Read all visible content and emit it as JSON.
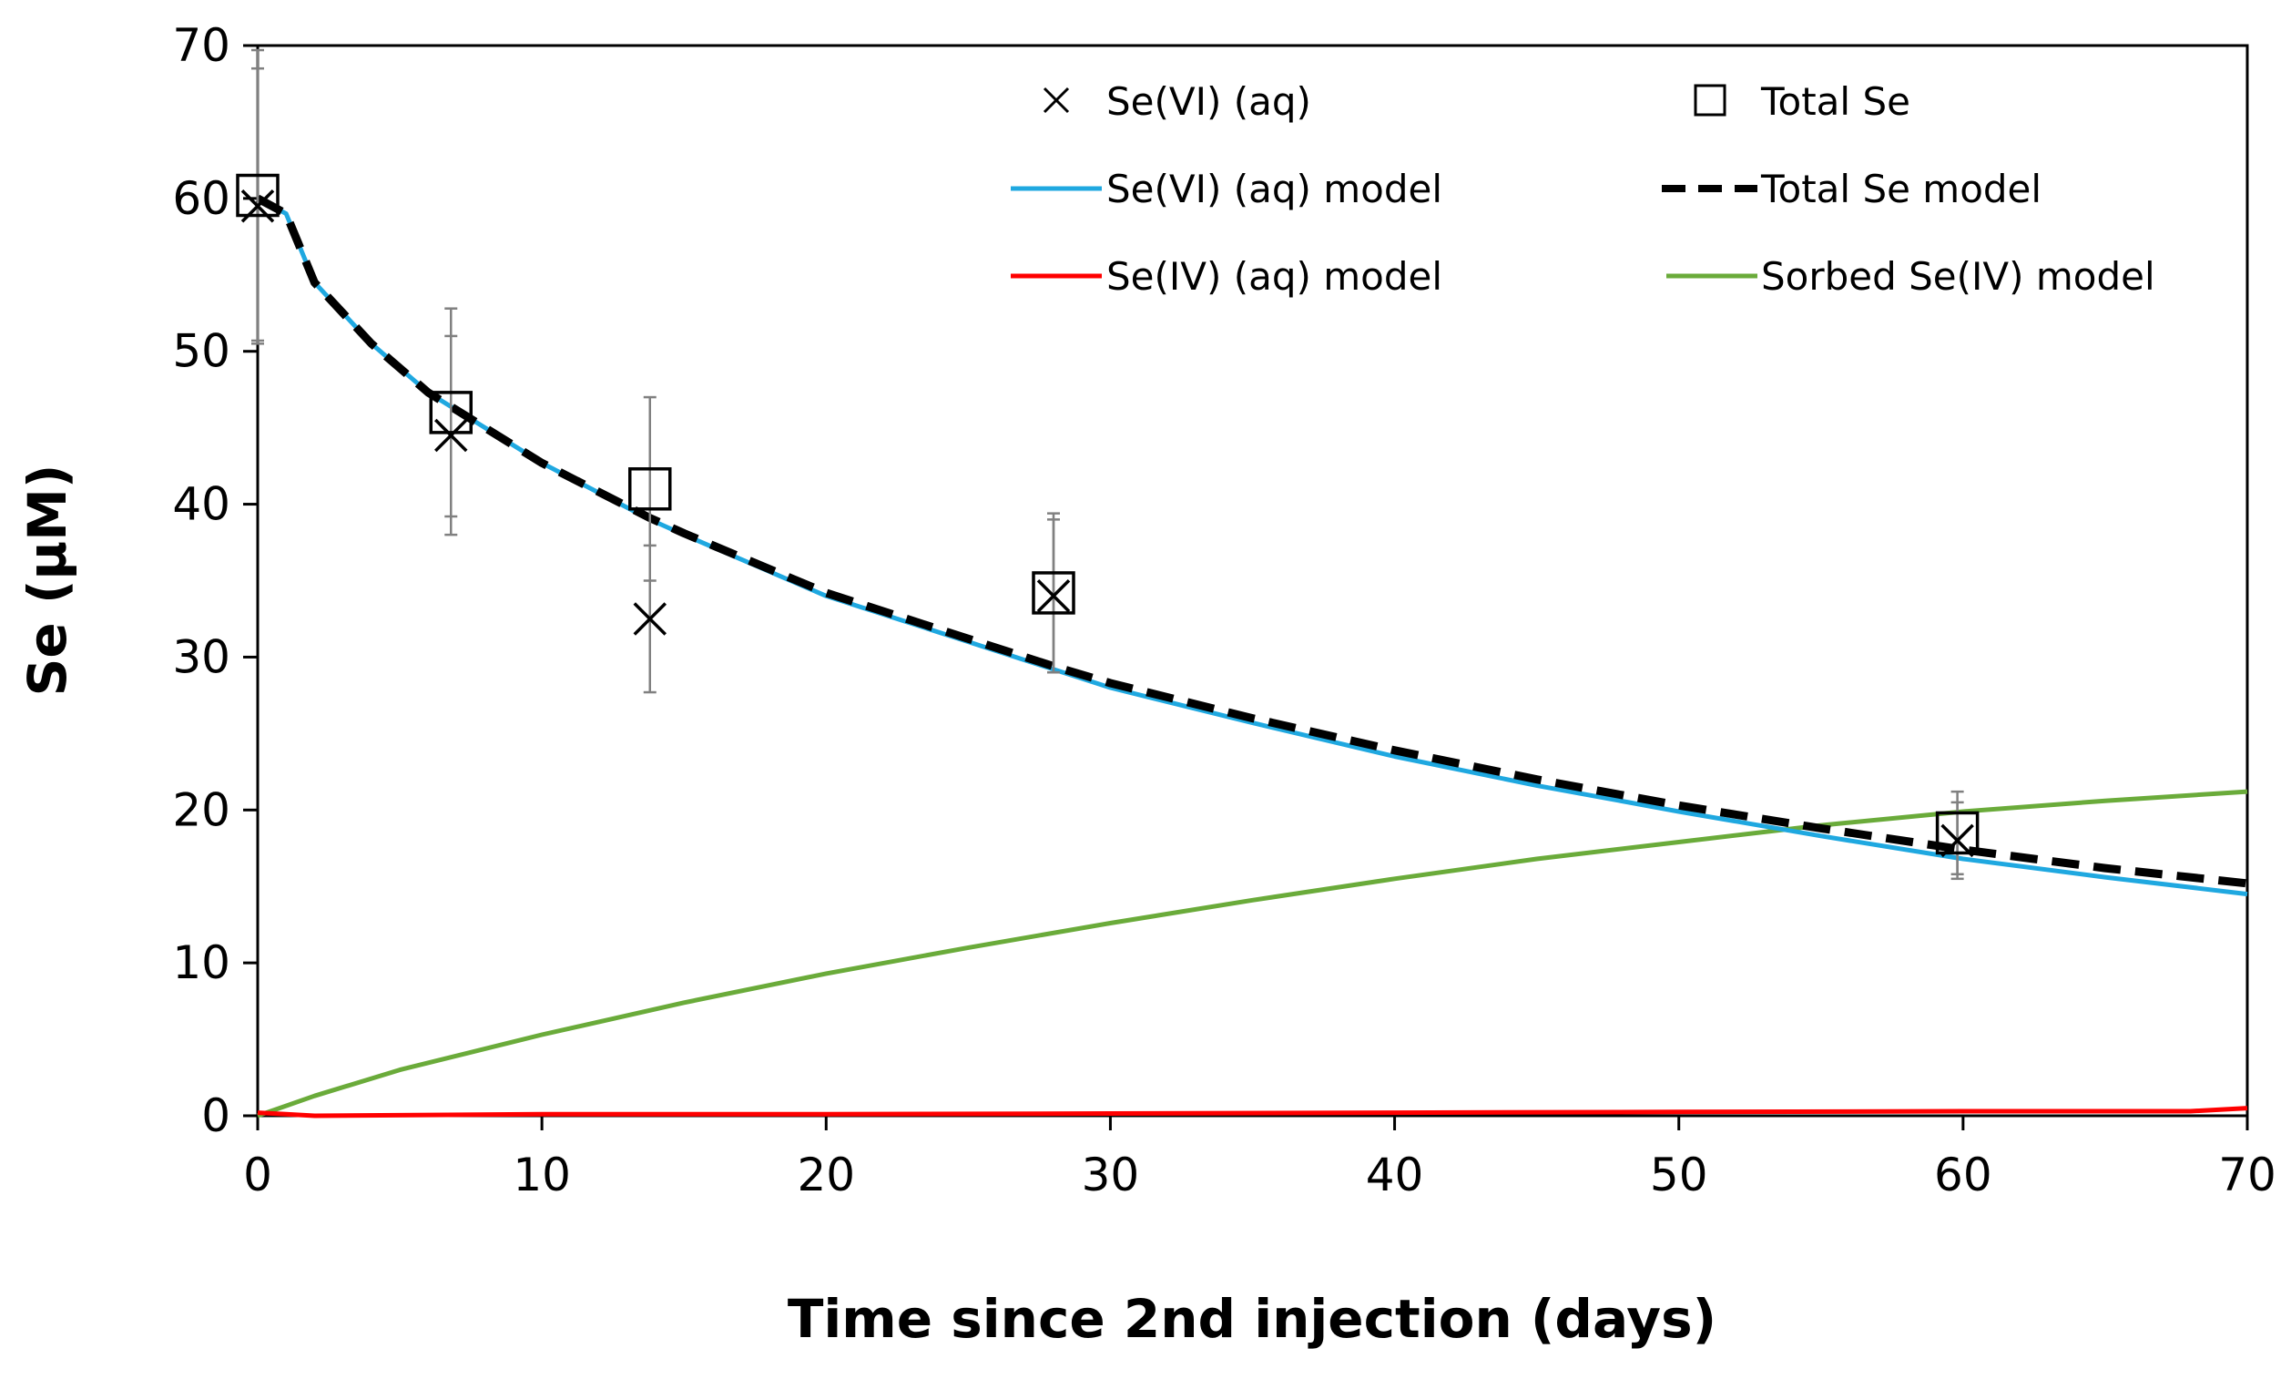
{
  "chart_data": {
    "type": "scatter",
    "xlabel": "Time since 2nd injection (days)",
    "ylabel": "Se (µM)",
    "xlim": [
      0,
      70
    ],
    "ylim": [
      0,
      70
    ],
    "xticks": [
      0,
      10,
      20,
      30,
      40,
      50,
      60,
      70
    ],
    "yticks": [
      0,
      10,
      20,
      30,
      40,
      50,
      60,
      70
    ],
    "grid": false,
    "legend_position": "top-right",
    "series": [
      {
        "name": "Se(VI) (aq)",
        "kind": "markers",
        "marker": "x",
        "color": "#000000",
        "x": [
          0,
          6.8,
          13.8,
          28,
          59.8
        ],
        "y": [
          59.5,
          44.5,
          32.5,
          34.0,
          18.0
        ],
        "yerr": [
          9.0,
          6.5,
          4.8,
          5.0,
          2.5
        ]
      },
      {
        "name": "Total Se",
        "kind": "markers",
        "marker": "square",
        "color": "#000000",
        "x": [
          0,
          6.8,
          13.8,
          28,
          59.8
        ],
        "y": [
          60.2,
          46.0,
          41.0,
          34.2,
          18.5
        ],
        "yerr": [
          9.5,
          6.8,
          6.0,
          5.2,
          2.7
        ]
      },
      {
        "name": "Se(VI) (aq) model",
        "kind": "line",
        "color": "#1fa8e0",
        "x": [
          0,
          1,
          2,
          4,
          6,
          8,
          10,
          13.8,
          15,
          20,
          25,
          28,
          30,
          35,
          40,
          45,
          50,
          55,
          60,
          65,
          70
        ],
        "y": [
          60,
          59,
          54.5,
          50.5,
          47.3,
          45,
          42.7,
          39,
          38,
          34,
          31,
          29.2,
          28,
          25.7,
          23.5,
          21.6,
          19.9,
          18.3,
          16.8,
          15.6,
          14.5
        ]
      },
      {
        "name": "Total Se model",
        "kind": "line",
        "dash": true,
        "color": "#000000",
        "x": [
          0,
          1,
          2,
          4,
          6,
          8,
          10,
          13.8,
          15,
          20,
          25,
          28,
          30,
          35,
          40,
          45,
          50,
          55,
          60,
          65,
          70
        ],
        "y": [
          60,
          59,
          54.5,
          50.5,
          47.3,
          45,
          42.7,
          39.1,
          38.1,
          34.2,
          31.2,
          29.4,
          28.3,
          26,
          23.9,
          22,
          20.3,
          18.8,
          17.4,
          16.2,
          15.2
        ]
      },
      {
        "name": "Se(IV) (aq) model",
        "kind": "line",
        "color": "#ff0000",
        "x": [
          0,
          1,
          2,
          10,
          20,
          30,
          40,
          50,
          60,
          68,
          70
        ],
        "y": [
          0.2,
          0.1,
          0.0,
          0.1,
          0.1,
          0.15,
          0.2,
          0.25,
          0.3,
          0.3,
          0.5
        ]
      },
      {
        "name": "Sorbed Se(IV) model",
        "kind": "line",
        "color": "#6aab3a",
        "x": [
          0,
          2,
          5,
          10,
          15,
          20,
          25,
          30,
          35,
          40,
          45,
          50,
          55,
          60,
          65,
          70
        ],
        "y": [
          0,
          1.3,
          3.0,
          5.3,
          7.4,
          9.3,
          11.0,
          12.6,
          14.1,
          15.5,
          16.8,
          17.9,
          19.0,
          19.9,
          20.6,
          21.2
        ]
      }
    ]
  },
  "colors": {
    "axis": "#000000",
    "errorbar": "#808080"
  }
}
